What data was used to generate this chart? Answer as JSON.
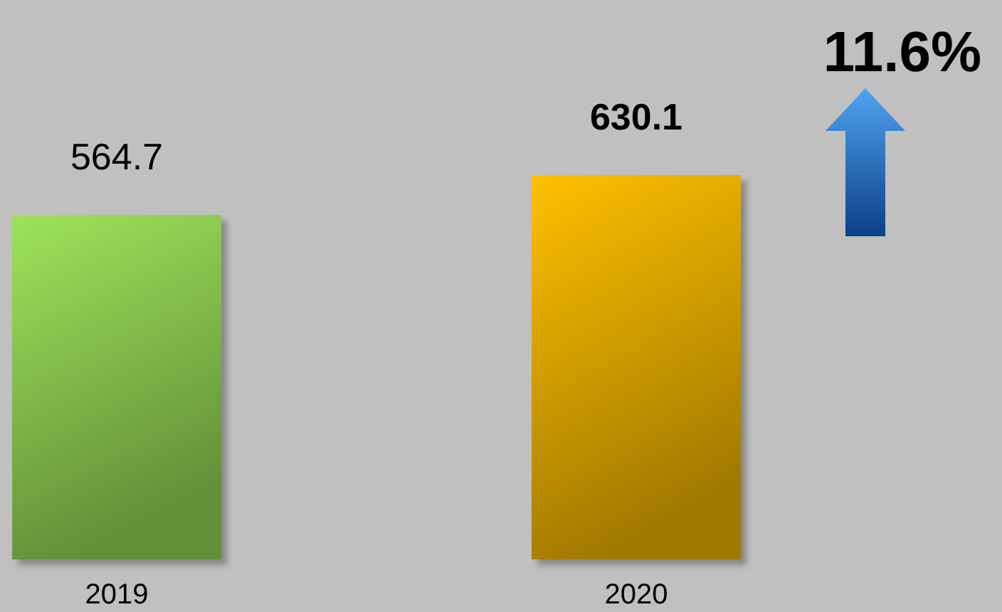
{
  "chart_data": {
    "type": "bar",
    "categories": [
      "2019",
      "2020"
    ],
    "values": [
      564.7,
      630.1
    ],
    "colors": [
      "#9ee35a",
      "#ffc000"
    ],
    "data_labels": true,
    "annotations": [
      "11.6%"
    ]
  }
}
